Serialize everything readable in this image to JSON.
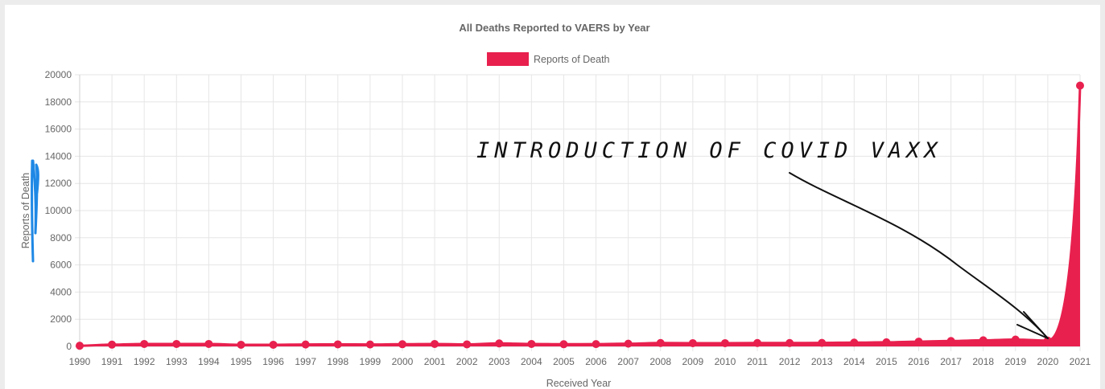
{
  "chart_data": {
    "type": "area",
    "title": "All Deaths Reported to VAERS by Year",
    "xlabel": "Received Year",
    "ylabel": "Reports of Death",
    "ylim": [
      0,
      20000
    ],
    "yticks": [
      0,
      2000,
      4000,
      6000,
      8000,
      10000,
      12000,
      14000,
      16000,
      18000,
      20000
    ],
    "categories": [
      "1990",
      "1991",
      "1992",
      "1993",
      "1994",
      "1995",
      "1996",
      "1997",
      "1998",
      "1999",
      "2000",
      "2001",
      "2002",
      "2003",
      "2004",
      "2005",
      "2006",
      "2007",
      "2008",
      "2009",
      "2010",
      "2011",
      "2012",
      "2013",
      "2014",
      "2015",
      "2016",
      "2017",
      "2018",
      "2019",
      "2020",
      "2021"
    ],
    "series": [
      {
        "name": "Reports of Death",
        "color": "#e8204e",
        "values": [
          50,
          130,
          180,
          180,
          180,
          120,
          120,
          140,
          150,
          140,
          160,
          180,
          150,
          220,
          180,
          160,
          170,
          200,
          250,
          240,
          240,
          250,
          250,
          260,
          280,
          300,
          350,
          400,
          450,
          500,
          430,
          19200
        ]
      }
    ],
    "legend": "top-center",
    "grid": true,
    "annotation": {
      "text": "INTRODUCTION OF COVID VAXX",
      "points_to": "2020"
    }
  }
}
